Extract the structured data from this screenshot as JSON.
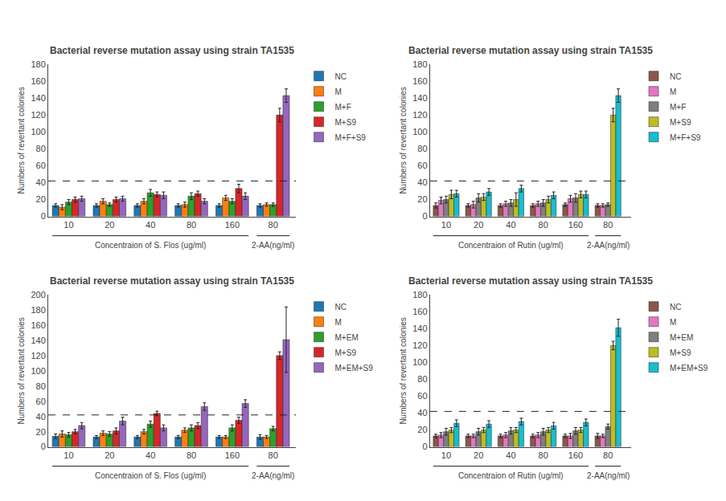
{
  "chart_data": [
    {
      "type": "bar",
      "title": "Bacterial reverse mutation assay using strain TA1535",
      "ylabel": "Numbers of revertant colonies",
      "categories": [
        "10",
        "20",
        "40",
        "80",
        "160",
        "80"
      ],
      "series": [
        {
          "name": "NC",
          "values": [
            13,
            13,
            13,
            13,
            13,
            13
          ],
          "error": [
            2,
            2,
            2,
            2,
            2,
            2
          ]
        },
        {
          "name": "M",
          "values": [
            11,
            18,
            18,
            14,
            22,
            14
          ],
          "error": [
            3,
            3,
            3,
            3,
            3,
            2
          ]
        },
        {
          "name": "M+F",
          "values": [
            17,
            14,
            28,
            24,
            18,
            14
          ],
          "error": [
            3,
            2,
            4,
            4,
            3,
            2
          ]
        },
        {
          "name": "M+S9",
          "values": [
            20,
            20,
            26,
            27,
            33,
            120
          ],
          "error": [
            3,
            3,
            3,
            3,
            5,
            8
          ]
        },
        {
          "name": "M+F+S9",
          "values": [
            21,
            21,
            25,
            18,
            24,
            143
          ],
          "error": [
            3,
            3,
            4,
            3,
            4,
            8
          ]
        }
      ],
      "reference_line": 42,
      "annotations": [
        "Concentraion of S. Flos (ug/ml)",
        "2-AA(ng/ml)"
      ],
      "ylim": [
        0,
        180
      ],
      "yticks": [
        0,
        20,
        40,
        60,
        80,
        100,
        120,
        140,
        160,
        180
      ],
      "grid": false,
      "legend": "right"
    },
    {
      "type": "bar",
      "title": "Bacterial reverse mutation assay using strain TA1535",
      "ylabel": "Numbers of revertant colonies",
      "categories": [
        "10",
        "20",
        "40",
        "80",
        "160",
        "80"
      ],
      "series": [
        {
          "name": "NC",
          "values": [
            13,
            13,
            13,
            13,
            14,
            13
          ],
          "error": [
            3,
            2,
            2,
            2,
            2,
            2
          ]
        },
        {
          "name": "M",
          "values": [
            19,
            14,
            15,
            15,
            21,
            13
          ],
          "error": [
            4,
            4,
            3,
            3,
            4,
            2
          ]
        },
        {
          "name": "M+F",
          "values": [
            20,
            22,
            16,
            16,
            22,
            14
          ],
          "error": [
            4,
            5,
            4,
            4,
            5,
            2
          ]
        },
        {
          "name": "M+S9",
          "values": [
            26,
            23,
            20,
            20,
            26,
            120
          ],
          "error": [
            5,
            4,
            8,
            4,
            4,
            8
          ]
        },
        {
          "name": "M+F+S9",
          "values": [
            27,
            29,
            33,
            25,
            26,
            143
          ],
          "error": [
            4,
            4,
            4,
            4,
            4,
            8
          ]
        }
      ],
      "reference_line": 42,
      "annotations": [
        "Concentraion of Rutin (ug/ml)",
        "2-AA(ng/ml)"
      ],
      "ylim": [
        0,
        180
      ],
      "yticks": [
        0,
        20,
        40,
        60,
        80,
        100,
        120,
        140,
        160,
        180
      ],
      "grid": false,
      "legend": "right"
    },
    {
      "type": "bar",
      "title": "Bacterial reverse mutation assay using strain TA1535",
      "ylabel": "Numbers of revertant colonies",
      "categories": [
        "10",
        "20",
        "40",
        "80",
        "160",
        "80"
      ],
      "series": [
        {
          "name": "NC",
          "values": [
            14,
            13,
            13,
            13,
            13,
            13
          ],
          "error": [
            3,
            2,
            2,
            2,
            2,
            3
          ]
        },
        {
          "name": "M",
          "values": [
            17,
            18,
            20,
            22,
            13,
            13
          ],
          "error": [
            4,
            3,
            3,
            3,
            2,
            2
          ]
        },
        {
          "name": "M+EM",
          "values": [
            16,
            17,
            30,
            25,
            25,
            24
          ],
          "error": [
            3,
            3,
            4,
            4,
            4,
            3
          ]
        },
        {
          "name": "M+S9",
          "values": [
            20,
            21,
            44,
            28,
            35,
            120
          ],
          "error": [
            3,
            4,
            3,
            4,
            4,
            5
          ]
        },
        {
          "name": "M+EM+S9",
          "values": [
            28,
            34,
            25,
            53,
            57,
            141
          ],
          "error": [
            4,
            5,
            4,
            5,
            5,
            43
          ]
        }
      ],
      "reference_line": 42,
      "annotations": [
        "Concentraion of S. Flos (ug/ml)",
        "2-AA(ng/ml)"
      ],
      "ylim": [
        0,
        200
      ],
      "yticks": [
        0,
        20,
        40,
        60,
        80,
        100,
        120,
        140,
        160,
        180,
        200
      ],
      "grid": false,
      "legend": "right"
    },
    {
      "type": "bar",
      "title": "Bacterial reverse mutation assay using strain TA1535",
      "ylabel": "Numbers of revertant colonies",
      "categories": [
        "10",
        "20",
        "40",
        "80",
        "160",
        "80"
      ],
      "series": [
        {
          "name": "NC",
          "values": [
            13,
            13,
            13,
            13,
            13,
            13
          ],
          "error": [
            2,
            2,
            2,
            2,
            2,
            3
          ]
        },
        {
          "name": "M",
          "values": [
            14,
            13,
            14,
            14,
            13,
            13
          ],
          "error": [
            3,
            2,
            3,
            3,
            3,
            2
          ]
        },
        {
          "name": "M+EM",
          "values": [
            18,
            18,
            19,
            18,
            19,
            24
          ],
          "error": [
            4,
            4,
            4,
            4,
            4,
            3
          ]
        },
        {
          "name": "M+S9",
          "values": [
            20,
            20,
            20,
            20,
            20,
            120
          ],
          "error": [
            3,
            3,
            3,
            3,
            3,
            5
          ]
        },
        {
          "name": "M+EM+S9",
          "values": [
            28,
            27,
            30,
            25,
            29,
            141
          ],
          "error": [
            4,
            4,
            4,
            4,
            4,
            10
          ]
        }
      ],
      "reference_line": 42,
      "annotations": [
        "Concentraion of Rutin (ug/ml)",
        "2-AA(ng/ml)"
      ],
      "ylim": [
        0,
        180
      ],
      "yticks": [
        0,
        20,
        40,
        60,
        80,
        100,
        120,
        140,
        160,
        180
      ],
      "grid": false,
      "legend": "right"
    }
  ]
}
